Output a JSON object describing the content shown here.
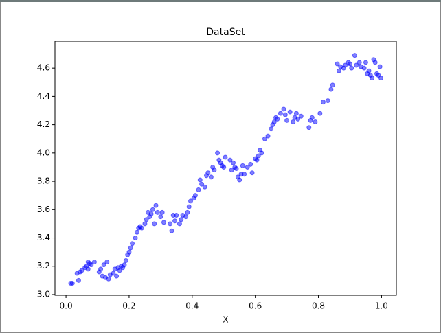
{
  "chart_data": {
    "type": "scatter",
    "title": "DataSet",
    "x_label": "X",
    "color": "#0000ff",
    "xlim": [
      -0.035,
      1.047
    ],
    "ylim": [
      2.995,
      4.79
    ],
    "xticks": [
      {
        "value": 0,
        "label": "0.0"
      },
      0.2,
      0.4,
      0.6,
      0.8,
      {
        "value": 1,
        "label": "1.0"
      }
    ],
    "yticks": [
      {
        "value": 3,
        "label": "3.0"
      },
      3.2,
      3.4,
      3.6,
      3.8,
      {
        "value": 4,
        "label": "4.0"
      },
      4.2,
      4.4,
      4.6
    ],
    "x": [
      0.015,
      0.02,
      0.035,
      0.04,
      0.045,
      0.05,
      0.06,
      0.065,
      0.07,
      0.07,
      0.075,
      0.08,
      0.09,
      0.105,
      0.11,
      0.115,
      0.12,
      0.125,
      0.13,
      0.135,
      0.14,
      0.15,
      0.155,
      0.16,
      0.165,
      0.17,
      0.175,
      0.18,
      0.185,
      0.19,
      0.195,
      0.2,
      0.205,
      0.21,
      0.22,
      0.225,
      0.23,
      0.235,
      0.24,
      0.25,
      0.255,
      0.26,
      0.265,
      0.27,
      0.275,
      0.28,
      0.285,
      0.29,
      0.3,
      0.305,
      0.31,
      0.33,
      0.335,
      0.34,
      0.345,
      0.35,
      0.36,
      0.365,
      0.37,
      0.38,
      0.385,
      0.39,
      0.395,
      0.405,
      0.41,
      0.42,
      0.425,
      0.43,
      0.44,
      0.445,
      0.45,
      0.46,
      0.465,
      0.47,
      0.48,
      0.485,
      0.49,
      0.495,
      0.5,
      0.505,
      0.52,
      0.525,
      0.53,
      0.535,
      0.54,
      0.545,
      0.55,
      0.555,
      0.56,
      0.565,
      0.575,
      0.585,
      0.59,
      0.6,
      0.605,
      0.61,
      0.615,
      0.62,
      0.63,
      0.64,
      0.65,
      0.655,
      0.66,
      0.665,
      0.67,
      0.68,
      0.69,
      0.695,
      0.7,
      0.71,
      0.72,
      0.725,
      0.73,
      0.735,
      0.745,
      0.77,
      0.775,
      0.78,
      0.79,
      0.805,
      0.815,
      0.83,
      0.84,
      0.845,
      0.86,
      0.865,
      0.87,
      0.88,
      0.885,
      0.895,
      0.9,
      0.905,
      0.915,
      0.92,
      0.93,
      0.935,
      0.945,
      0.95,
      0.955,
      0.96,
      0.965,
      0.97,
      0.975,
      0.98,
      0.985,
      0.99,
      0.995,
      0.998
    ],
    "values": [
      3.08,
      3.08,
      3.15,
      3.1,
      3.16,
      3.17,
      3.19,
      3.2,
      3.23,
      3.18,
      3.22,
      3.21,
      3.23,
      3.16,
      3.18,
      3.13,
      3.21,
      3.12,
      3.23,
      3.11,
      3.14,
      3.15,
      3.18,
      3.13,
      3.19,
      3.17,
      3.2,
      3.19,
      3.21,
      3.24,
      3.28,
      3.3,
      3.33,
      3.36,
      3.4,
      3.44,
      3.47,
      3.48,
      3.47,
      3.5,
      3.53,
      3.58,
      3.55,
      3.57,
      3.6,
      3.5,
      3.63,
      3.58,
      3.55,
      3.58,
      3.51,
      3.5,
      3.45,
      3.56,
      3.52,
      3.56,
      3.5,
      3.53,
      3.56,
      3.55,
      3.58,
      3.62,
      3.66,
      3.68,
      3.7,
      3.74,
      3.81,
      3.78,
      3.76,
      3.84,
      3.86,
      3.83,
      3.9,
      3.88,
      4.0,
      3.95,
      3.93,
      3.91,
      3.9,
      3.97,
      3.95,
      3.88,
      3.93,
      3.9,
      3.89,
      3.83,
      3.81,
      3.85,
      3.91,
      3.85,
      3.9,
      3.92,
      3.86,
      3.96,
      3.95,
      3.98,
      4.02,
      4.0,
      4.1,
      4.12,
      4.17,
      4.2,
      4.22,
      4.25,
      4.24,
      4.28,
      4.31,
      4.27,
      4.23,
      4.29,
      4.22,
      4.25,
      4.28,
      4.24,
      4.26,
      4.18,
      4.23,
      4.25,
      4.22,
      4.28,
      4.36,
      4.37,
      4.45,
      4.48,
      4.63,
      4.58,
      4.61,
      4.6,
      4.62,
      4.64,
      4.63,
      4.6,
      4.69,
      4.62,
      4.64,
      4.61,
      4.6,
      4.64,
      4.56,
      4.58,
      4.55,
      4.53,
      4.66,
      4.64,
      4.56,
      4.55,
      4.61,
      4.53
    ]
  }
}
